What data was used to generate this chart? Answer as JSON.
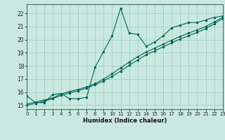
{
  "xlabel": "Humidex (Indice chaleur)",
  "xlim": [
    0,
    23
  ],
  "ylim": [
    14.7,
    22.7
  ],
  "xticks": [
    0,
    1,
    2,
    3,
    4,
    5,
    6,
    7,
    8,
    9,
    10,
    11,
    12,
    13,
    14,
    15,
    16,
    17,
    18,
    19,
    20,
    21,
    22,
    23
  ],
  "yticks": [
    15,
    16,
    17,
    18,
    19,
    20,
    21,
    22
  ],
  "background_color": "#c8e8e0",
  "grid_color": "#99ccbb",
  "line_color": "#006655",
  "line1_x": [
    0,
    1,
    2,
    3,
    4,
    5,
    6,
    7,
    8,
    9,
    10,
    11,
    12,
    13,
    14,
    15,
    16,
    17,
    18,
    19,
    20,
    21,
    22,
    23
  ],
  "line1_y": [
    15.7,
    15.2,
    15.2,
    15.8,
    15.9,
    15.5,
    15.5,
    15.6,
    17.9,
    19.1,
    20.3,
    22.4,
    20.5,
    20.4,
    19.5,
    19.8,
    20.3,
    20.9,
    21.1,
    21.3,
    21.3,
    21.5,
    21.7,
    21.8
  ],
  "line2_x": [
    0,
    1,
    2,
    3,
    4,
    5,
    6,
    7,
    8,
    9,
    10,
    11,
    12,
    13,
    14,
    15,
    16,
    17,
    18,
    19,
    20,
    21,
    22,
    23
  ],
  "line2_y": [
    15.1,
    15.25,
    15.4,
    15.55,
    15.85,
    16.05,
    16.2,
    16.4,
    16.65,
    17.0,
    17.4,
    17.85,
    18.3,
    18.7,
    19.05,
    19.35,
    19.65,
    19.95,
    20.25,
    20.5,
    20.75,
    21.0,
    21.35,
    21.7
  ],
  "line3_x": [
    0,
    1,
    2,
    3,
    4,
    5,
    6,
    7,
    8,
    9,
    10,
    11,
    12,
    13,
    14,
    15,
    16,
    17,
    18,
    19,
    20,
    21,
    22,
    23
  ],
  "line3_y": [
    15.0,
    15.15,
    15.3,
    15.5,
    15.75,
    15.95,
    16.1,
    16.3,
    16.55,
    16.85,
    17.2,
    17.6,
    18.05,
    18.45,
    18.85,
    19.15,
    19.45,
    19.75,
    20.05,
    20.3,
    20.55,
    20.85,
    21.2,
    21.6
  ]
}
